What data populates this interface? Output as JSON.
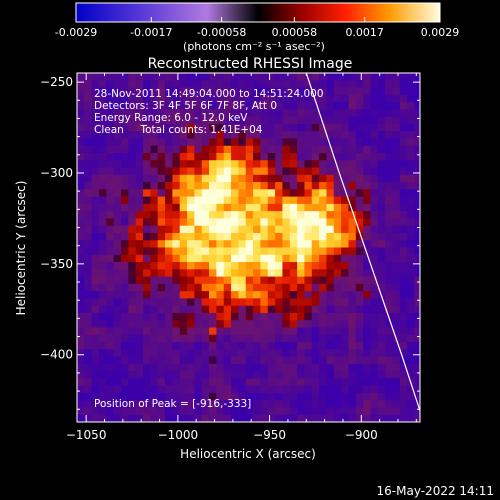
{
  "colorbar": {
    "tick_labels": [
      "-0.0029",
      "-0.0017",
      "-0.00058",
      "0.00058",
      "0.0017",
      "0.0029"
    ],
    "tick_values": [
      -0.0029,
      -0.0017,
      -0.00058,
      0.00058,
      0.0017,
      0.0029
    ],
    "range": [
      -0.0029,
      0.0029
    ],
    "units_label": "(photons cm⁻² s⁻¹ asec⁻²)"
  },
  "chart_data": {
    "type": "heatmap",
    "title": "Reconstructed RHESSI Image",
    "xlabel": "Heliocentric X (arcsec)",
    "ylabel": "Heliocentric Y (arcsec)",
    "xlim": [
      -1055,
      -868
    ],
    "ylim": [
      -437,
      -245
    ],
    "x_ticks": [
      -1050,
      -1000,
      -950,
      -900
    ],
    "y_ticks": [
      -250,
      -300,
      -350,
      -400
    ],
    "x_tick_labels": [
      "−1050",
      "−1000",
      "−950",
      "−900"
    ],
    "y_tick_labels": [
      "−250",
      "−300",
      "−350",
      "−400"
    ],
    "annotations": [
      "28-Nov-2011 14:49:04.000 to 14:51:24.000",
      "Detectors: 3F 4F 5F 6F 7F 8F, Att 0",
      "Energy Range: 6.0 - 12.0 keV",
      "Clean     Total counts: 1.41E+04"
    ],
    "peak_label": "Position of Peak = [-916,-333]",
    "peak": {
      "x": -916,
      "y": -333
    },
    "limb_curve": [
      [
        -930,
        -245
      ],
      [
        -912,
        -300
      ],
      [
        -895,
        -350
      ],
      [
        -878,
        -400
      ],
      [
        -866,
        -437
      ]
    ]
  },
  "footer": {
    "timestamp": "16-May-2022 14:11"
  }
}
